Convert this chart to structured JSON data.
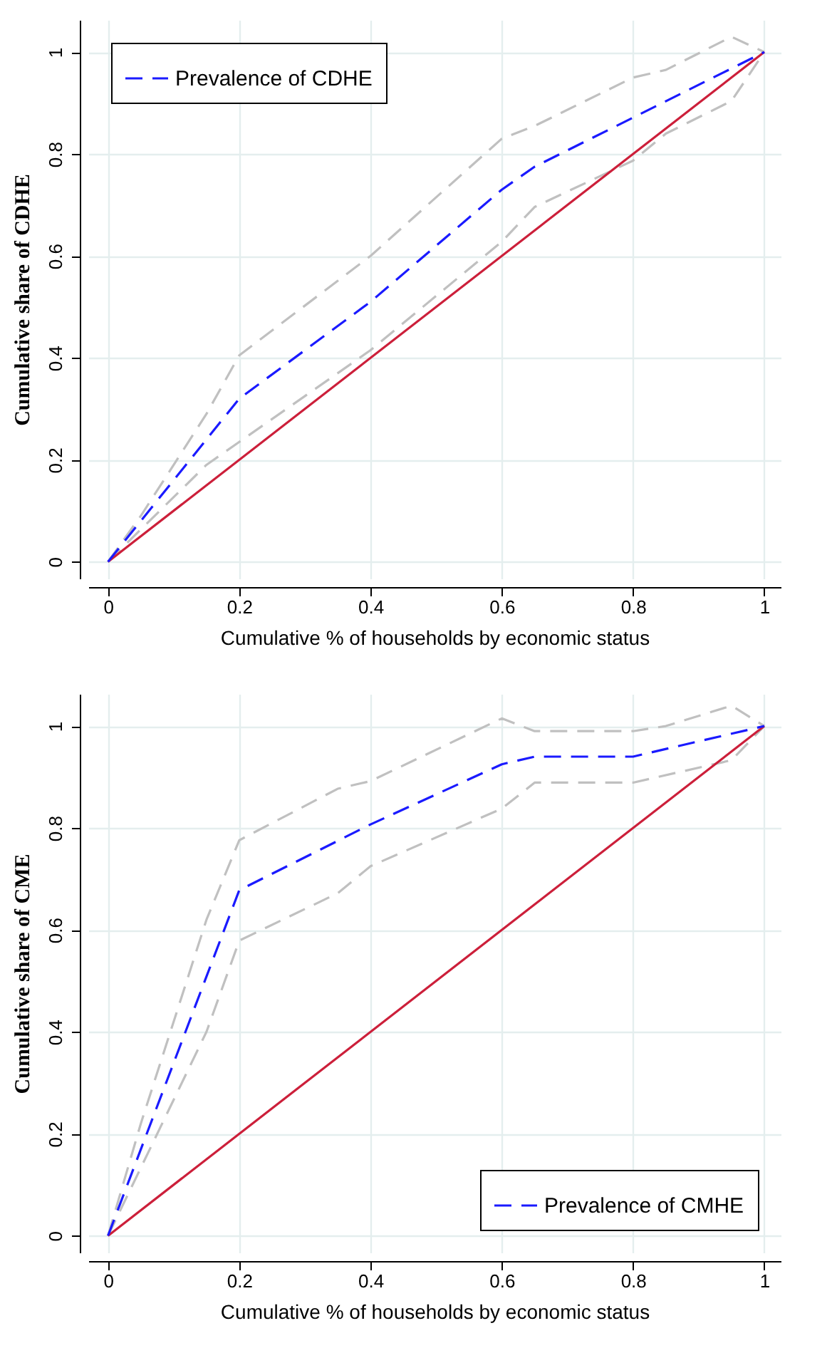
{
  "chart_data": [
    {
      "type": "line",
      "xlabel": "Cumulative % of households by economic status",
      "ylabel": "Cumulative share of CDHE",
      "xlim": [
        -0.03,
        1.025
      ],
      "ylim": [
        -0.033,
        1.063
      ],
      "xticks": [
        0,
        0.2,
        0.4,
        0.6,
        0.8,
        1
      ],
      "yticks": [
        0,
        0.2,
        0.4,
        0.6,
        0.8,
        1
      ],
      "grid": true,
      "legend": "top left",
      "series": [
        {
          "color": "#c0c0c0",
          "line_style": "dashed",
          "x": [
            0,
            0.05,
            0.15,
            0.2,
            0.4,
            0.6,
            0.65,
            0.8,
            0.85,
            0.95,
            1
          ],
          "values": [
            0,
            0.09,
            0.29,
            0.405,
            0.6,
            0.83,
            0.855,
            0.95,
            0.965,
            1.03,
            1
          ]
        },
        {
          "color": "#c0c0c0",
          "line_style": "dashed",
          "x": [
            0,
            0.15,
            0.2,
            0.4,
            0.6,
            0.65,
            0.8,
            0.85,
            0.95,
            1
          ],
          "values": [
            0,
            0.19,
            0.235,
            0.415,
            0.628,
            0.696,
            0.787,
            0.84,
            0.904,
            1
          ]
        },
        {
          "color": "#cc1f3a",
          "line_style": "solid",
          "x": [
            0,
            1
          ],
          "values": [
            0,
            1
          ]
        },
        {
          "name": "Prevalence of CDHE",
          "color": "#1a1aff",
          "line_style": "dashed",
          "x": [
            0,
            0.2,
            0.4,
            0.6,
            0.65,
            1
          ],
          "values": [
            0,
            0.32,
            0.51,
            0.73,
            0.775,
            1
          ]
        }
      ]
    },
    {
      "type": "line",
      "xlabel": "Cumulative % of households by economic status",
      "ylabel": "Cumulative share of CME",
      "xlim": [
        -0.03,
        1.025
      ],
      "ylim": [
        -0.033,
        1.063
      ],
      "xticks": [
        0,
        0.2,
        0.4,
        0.6,
        0.8,
        1
      ],
      "yticks": [
        0,
        0.2,
        0.4,
        0.6,
        0.8,
        1
      ],
      "grid": true,
      "legend": "bottom right",
      "series": [
        {
          "color": "#c0c0c0",
          "line_style": "dashed",
          "x": [
            0,
            0.05,
            0.15,
            0.2,
            0.35,
            0.4,
            0.6,
            0.65,
            0.8,
            0.85,
            0.95,
            1
          ],
          "values": [
            0,
            0.22,
            0.62,
            0.776,
            0.877,
            0.892,
            1.015,
            0.99,
            0.99,
            1.0,
            1.04,
            1
          ]
        },
        {
          "color": "#c0c0c0",
          "line_style": "dashed",
          "x": [
            0,
            0.15,
            0.2,
            0.35,
            0.4,
            0.6,
            0.65,
            0.8,
            0.95,
            1
          ],
          "values": [
            0,
            0.4,
            0.579,
            0.672,
            0.725,
            0.838,
            0.889,
            0.889,
            0.933,
            1
          ]
        },
        {
          "color": "#cc1f3a",
          "line_style": "solid",
          "x": [
            0,
            1
          ],
          "values": [
            0,
            1
          ]
        },
        {
          "name": "Prevalence of CMHE",
          "color": "#1a1aff",
          "line_style": "dashed",
          "x": [
            0,
            0.2,
            0.4,
            0.6,
            0.65,
            0.8,
            1
          ],
          "values": [
            0,
            0.678,
            0.807,
            0.925,
            0.94,
            0.94,
            1
          ]
        }
      ]
    }
  ]
}
